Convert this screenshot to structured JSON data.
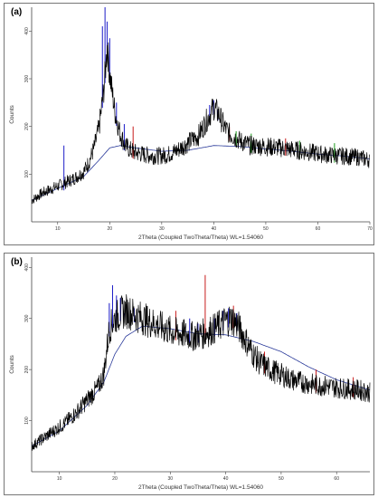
{
  "panels": [
    {
      "label": "(a)",
      "colors": {
        "trace": "#000000",
        "background": "#2a3a9a",
        "peak_blue": "#1c1cc8",
        "peak_red": "#c81c1c",
        "peak_green": "#1a9a1a"
      },
      "chart_data": {
        "type": "line",
        "xlabel": "2Theta (Coupled TwoTheta/Theta) WL=1.54060",
        "ylabel": "Counts",
        "xlim": [
          5,
          70
        ],
        "ylim": [
          0,
          450
        ],
        "xticks": [
          10,
          20,
          30,
          40,
          50,
          60,
          70
        ],
        "yticks": [
          100,
          200,
          300,
          400
        ],
        "grid": false,
        "series": [
          {
            "role": "measured pattern",
            "x": [
              5,
              7,
              9,
              11,
              13,
              15,
              16,
              17,
              18,
              19,
              19.5,
              20,
              21,
              22,
              23,
              24,
              25,
              27,
              29,
              31,
              33,
              35,
              37,
              38,
              39,
              40,
              41,
              42,
              43,
              45,
              47,
              50,
              53,
              56,
              59,
              62,
              65,
              68,
              70
            ],
            "y": [
              45,
              60,
              70,
              80,
              90,
              105,
              125,
              155,
              200,
              290,
              370,
              310,
              230,
              185,
              160,
              150,
              145,
              140,
              138,
              140,
              150,
              165,
              180,
              200,
              220,
              240,
              225,
              200,
              185,
              170,
              160,
              158,
              155,
              150,
              145,
              140,
              138,
              135,
              130
            ]
          },
          {
            "role": "background curve",
            "x": [
              5,
              10,
              15,
              18,
              20,
              22,
              25,
              30,
              35,
              40,
              45,
              50,
              55,
              60,
              65,
              70
            ],
            "y": [
              45,
              70,
              95,
              130,
              155,
              160,
              155,
              148,
              150,
              160,
              158,
              153,
              148,
              142,
              138,
              132
            ]
          }
        ],
        "peaks": [
          {
            "x": 11.2,
            "y": 160,
            "color": "blue"
          },
          {
            "x": 18.6,
            "y": 410,
            "color": "blue"
          },
          {
            "x": 19.1,
            "y": 450,
            "color": "blue"
          },
          {
            "x": 19.5,
            "y": 420,
            "color": "blue"
          },
          {
            "x": 20.0,
            "y": 385,
            "color": "blue"
          },
          {
            "x": 21.3,
            "y": 250,
            "color": "blue"
          },
          {
            "x": 22.8,
            "y": 205,
            "color": "blue"
          },
          {
            "x": 24.5,
            "y": 200,
            "color": "red"
          },
          {
            "x": 39.2,
            "y": 245,
            "color": "blue"
          },
          {
            "x": 40.0,
            "y": 255,
            "color": "blue"
          },
          {
            "x": 40.8,
            "y": 235,
            "color": "blue"
          },
          {
            "x": 43.0,
            "y": 200,
            "color": "red"
          },
          {
            "x": 44.3,
            "y": 190,
            "color": "green"
          },
          {
            "x": 47.2,
            "y": 185,
            "color": "green"
          },
          {
            "x": 53.8,
            "y": 175,
            "color": "red"
          },
          {
            "x": 56.5,
            "y": 170,
            "color": "green"
          },
          {
            "x": 63.2,
            "y": 165,
            "color": "green"
          }
        ]
      }
    },
    {
      "label": "(b)",
      "colors": {
        "trace": "#000000",
        "background": "#2a3a9a",
        "peak_blue": "#1c1cc8",
        "peak_red": "#c81c1c",
        "peak_green": "#1a9a1a"
      },
      "chart_data": {
        "type": "line",
        "xlabel": "2Theta (Coupled TwoTheta/Theta) WL=1.54060",
        "ylabel": "Counts",
        "xlim": [
          5,
          66
        ],
        "ylim": [
          0,
          420
        ],
        "xticks": [
          10,
          20,
          30,
          40,
          50,
          60
        ],
        "yticks": [
          100,
          200,
          300,
          400
        ],
        "grid": false,
        "series": [
          {
            "role": "measured pattern",
            "x": [
              5,
              7,
              9,
              11,
              13,
              15,
              17,
              18,
              19,
              20,
              21,
              22,
              24,
              26,
              28,
              30,
              32,
              34,
              36,
              38,
              40,
              41,
              42,
              43,
              44,
              45,
              46,
              48,
              50,
              52,
              54,
              56,
              58,
              60,
              62,
              64,
              66
            ],
            "y": [
              50,
              65,
              80,
              95,
              115,
              140,
              165,
              190,
              280,
              300,
              310,
              315,
              305,
              295,
              285,
              275,
              270,
              265,
              270,
              280,
              295,
              300,
              290,
              270,
              250,
              230,
              215,
              200,
              190,
              180,
              175,
              170,
              168,
              165,
              162,
              160,
              155
            ]
          },
          {
            "role": "background curve",
            "x": [
              5,
              10,
              15,
              18,
              20,
              22,
              25,
              30,
              35,
              40,
              45,
              50,
              55,
              60,
              66
            ],
            "y": [
              50,
              80,
              130,
              175,
              230,
              265,
              285,
              280,
              270,
              268,
              255,
              235,
              205,
              180,
              160
            ]
          }
        ],
        "peaks": [
          {
            "x": 19.0,
            "y": 330,
            "color": "blue"
          },
          {
            "x": 19.6,
            "y": 365,
            "color": "blue"
          },
          {
            "x": 20.3,
            "y": 345,
            "color": "blue"
          },
          {
            "x": 21.0,
            "y": 340,
            "color": "blue"
          },
          {
            "x": 21.8,
            "y": 310,
            "color": "blue"
          },
          {
            "x": 23.5,
            "y": 320,
            "color": "blue"
          },
          {
            "x": 31.0,
            "y": 315,
            "color": "red"
          },
          {
            "x": 33.5,
            "y": 300,
            "color": "blue"
          },
          {
            "x": 35.0,
            "y": 290,
            "color": "blue"
          },
          {
            "x": 36.3,
            "y": 385,
            "color": "red"
          },
          {
            "x": 38.0,
            "y": 300,
            "color": "blue"
          },
          {
            "x": 39.5,
            "y": 315,
            "color": "blue"
          },
          {
            "x": 40.5,
            "y": 320,
            "color": "blue"
          },
          {
            "x": 41.4,
            "y": 325,
            "color": "red"
          },
          {
            "x": 42.0,
            "y": 310,
            "color": "blue"
          },
          {
            "x": 47.0,
            "y": 235,
            "color": "red"
          },
          {
            "x": 56.3,
            "y": 200,
            "color": "red"
          },
          {
            "x": 63.0,
            "y": 185,
            "color": "red"
          }
        ]
      }
    }
  ]
}
